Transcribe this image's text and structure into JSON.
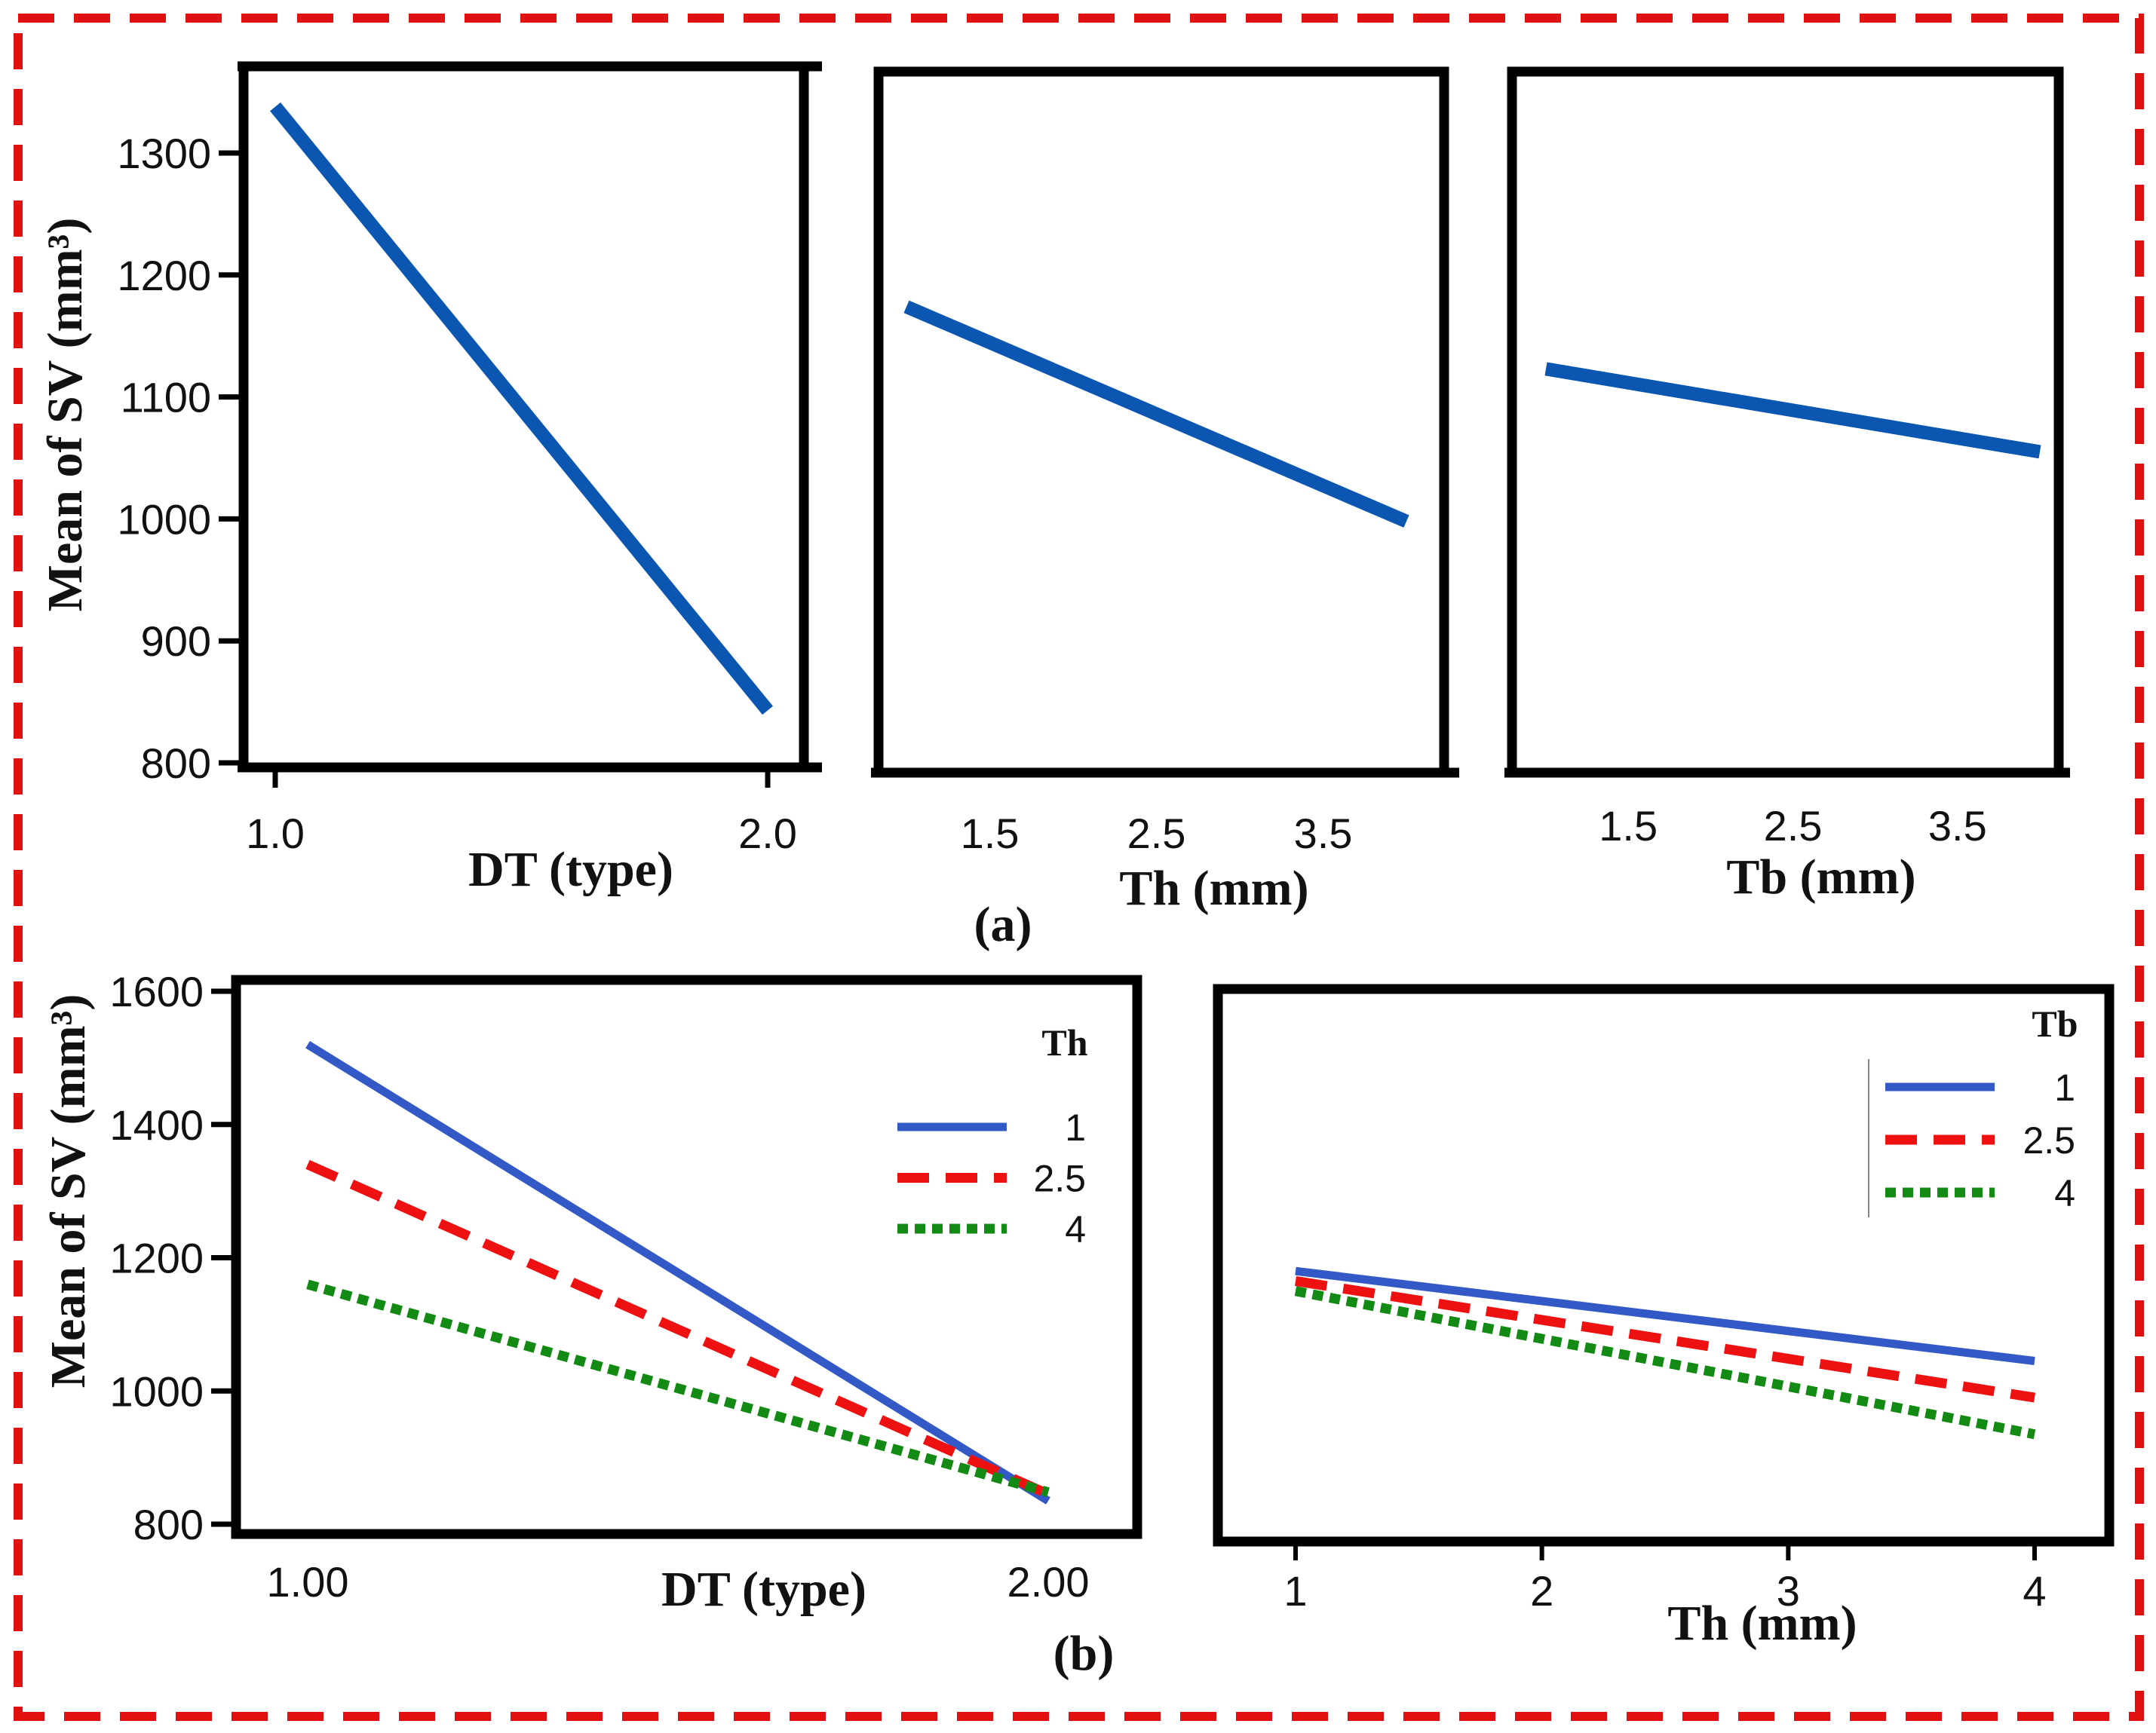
{
  "panel_labels": {
    "a": "(a)",
    "b": "(b)"
  },
  "colors": {
    "border": "#e01010",
    "main_effect_line": "#0a56b0",
    "blue": "#3359c7",
    "red": "#ee1111",
    "green": "#138a13"
  },
  "chart_data": [
    {
      "type": "line",
      "xlabel": "DT (type)",
      "ylabel": "Mean of SV (mm³)",
      "x": [
        1.0,
        2.0
      ],
      "xticks": [
        "1.0",
        "2.0"
      ],
      "yticks": [
        "800",
        "900",
        "1000",
        "1100",
        "1200",
        "1300"
      ],
      "ylim": [
        800,
        1300
      ],
      "series": [
        {
          "values": [
            1338,
            843
          ]
        }
      ]
    },
    {
      "type": "line",
      "xlabel": "Th (mm)",
      "ylabel": "",
      "x": [
        1,
        4
      ],
      "xticks": [
        "1.5",
        "2.5",
        "3.5"
      ],
      "ylim": [
        800,
        1300
      ],
      "series": [
        {
          "values": [
            1174,
            998
          ]
        }
      ]
    },
    {
      "type": "line",
      "xlabel": "Tb (mm)",
      "ylabel": "",
      "x": [
        1,
        4
      ],
      "xticks": [
        "1.5",
        "2.5",
        "3.5"
      ],
      "ylim": [
        800,
        1300
      ],
      "series": [
        {
          "values": [
            1123,
            1055
          ]
        }
      ]
    },
    {
      "type": "line",
      "xlabel": "DT (type)",
      "ylabel": "Mean of SV (mm³)",
      "x": [
        1.0,
        2.0
      ],
      "xticks": [
        "1.00",
        "2.00"
      ],
      "yticks": [
        "800",
        "1000",
        "1200",
        "1400",
        "1600"
      ],
      "ylim": [
        800,
        1600
      ],
      "legend_title": "Th",
      "legend": "top-right",
      "series": [
        {
          "name": "1",
          "values": [
            1520,
            835
          ]
        },
        {
          "name": "2.5",
          "values": [
            1340,
            845
          ]
        },
        {
          "name": "4",
          "values": [
            1160,
            848
          ]
        }
      ]
    },
    {
      "type": "line",
      "xlabel": "Th (mm)",
      "ylabel": "",
      "x": [
        1,
        4
      ],
      "xticks": [
        "1",
        "2",
        "3",
        "4"
      ],
      "ylim": [
        800,
        1600
      ],
      "legend_title": "Tb",
      "legend": "top-right",
      "series": [
        {
          "name": "1",
          "values": [
            1180,
            1045
          ]
        },
        {
          "name": "2.5",
          "values": [
            1165,
            990
          ]
        },
        {
          "name": "4",
          "values": [
            1150,
            935
          ]
        }
      ]
    }
  ]
}
